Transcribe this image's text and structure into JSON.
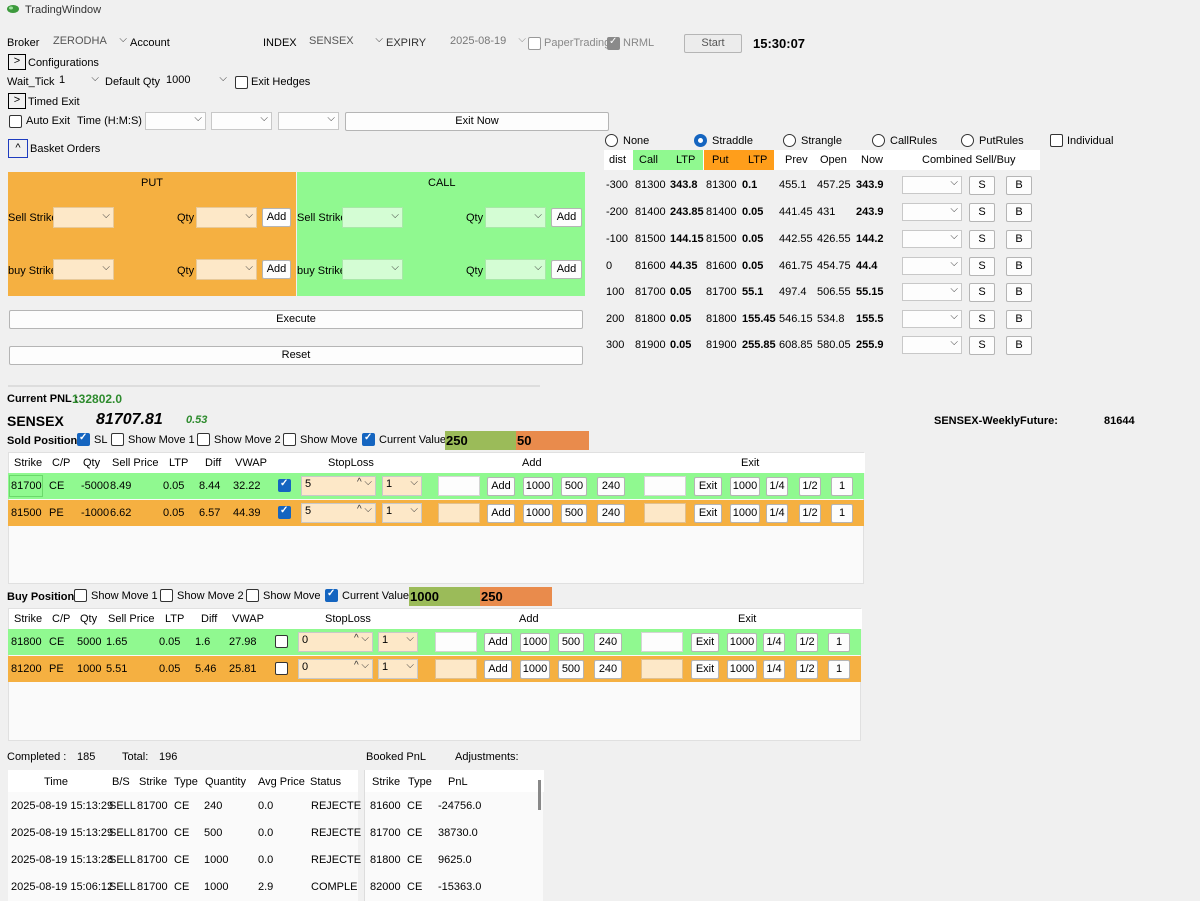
{
  "window": {
    "title": "TradingWindow"
  },
  "top": {
    "broker_label": "Broker",
    "broker_value": "ZERODHA",
    "account_label": "Account",
    "index_label": "INDEX",
    "index_value": "SENSEX",
    "expiry_label": "EXPIRY",
    "expiry_value": "2025-08-19",
    "paper_label": "PaperTrading",
    "nrml_label": "NRML",
    "start_label": "Start",
    "clock": "15:30:07"
  },
  "config": {
    "configurations": "Configurations",
    "wait_tick_label": "Wait_Tick",
    "wait_tick_value": "1",
    "default_qty_label": "Default Qty",
    "default_qty_value": "1000",
    "exit_hedges": "Exit Hedges",
    "timed_exit": "Timed Exit",
    "auto_exit": "Auto Exit",
    "time_label": "Time (H:M:S)",
    "exit_now": "Exit Now",
    "basket_orders": "Basket Orders"
  },
  "basket": {
    "put_title": "PUT",
    "call_title": "CALL",
    "sell_strike": "Sell Strike",
    "buy_strike": "buy Strike",
    "qty": "Qty",
    "add": "Add",
    "execute": "Execute",
    "reset": "Reset",
    "put_color": "#f5b041",
    "call_color": "#90f990"
  },
  "modes": [
    "None",
    "Straddle",
    "Strangle",
    "CallRules",
    "PutRules",
    "Individual"
  ],
  "chain": {
    "headers": [
      "dist",
      "Call",
      "LTP",
      "Put",
      "LTP",
      "Prev",
      "Open",
      "Now",
      "Combined Sell/Buy"
    ],
    "s_label": "S",
    "b_label": "B",
    "rows": [
      {
        "dist": "-300",
        "call": "81300",
        "cltp": "343.8",
        "put": "81300",
        "pltp": "0.1",
        "prev": "455.1",
        "open": "457.25",
        "now": "343.9"
      },
      {
        "dist": "-200",
        "call": "81400",
        "cltp": "243.85",
        "put": "81400",
        "pltp": "0.05",
        "prev": "441.45",
        "open": "431",
        "now": "243.9"
      },
      {
        "dist": "-100",
        "call": "81500",
        "cltp": "144.15",
        "put": "81500",
        "pltp": "0.05",
        "prev": "442.55",
        "open": "426.55",
        "now": "144.2"
      },
      {
        "dist": "0",
        "call": "81600",
        "cltp": "44.35",
        "put": "81600",
        "pltp": "0.05",
        "prev": "461.75",
        "open": "454.75",
        "now": "44.4"
      },
      {
        "dist": "100",
        "call": "81700",
        "cltp": "0.05",
        "put": "81700",
        "pltp": "55.1",
        "prev": "497.4",
        "open": "506.55",
        "now": "55.15"
      },
      {
        "dist": "200",
        "call": "81800",
        "cltp": "0.05",
        "put": "81800",
        "pltp": "155.45",
        "prev": "546.15",
        "open": "534.8",
        "now": "155.5"
      },
      {
        "dist": "300",
        "call": "81900",
        "cltp": "0.05",
        "put": "81900",
        "pltp": "255.85",
        "prev": "608.85",
        "open": "580.05",
        "now": "255.9"
      }
    ]
  },
  "pnl": {
    "label": "Current PNL :",
    "value": "132802.0"
  },
  "index_line": {
    "name": "SENSEX",
    "price": "81707.81",
    "change": "0.53",
    "future_label": "SENSEX-WeeklyFuture:",
    "future_value": "81644"
  },
  "sold": {
    "title": "Sold Positions",
    "sl": "SL",
    "show_move1": "Show Move 1",
    "show_move2": "Show Move 2",
    "show_move": "Show Move",
    "current_value": "Current Value",
    "val1": "250",
    "val2": "50",
    "headers": [
      "Strike",
      "C/P",
      "Qty",
      "Sell Price",
      "LTP",
      "Diff",
      "VWAP",
      "StopLoss",
      "Add",
      "Exit"
    ],
    "rows": [
      {
        "strike": "81700",
        "cp": "CE",
        "qty": "-5000",
        "sell": "8.49",
        "ltp": "0.05",
        "diff": "8.44",
        "vwap": "32.22",
        "sl": "5",
        "sl2": "1"
      },
      {
        "strike": "81500",
        "cp": "PE",
        "qty": "-1000",
        "sell": "6.62",
        "ltp": "0.05",
        "diff": "6.57",
        "vwap": "44.39",
        "sl": "5",
        "sl2": "1"
      }
    ]
  },
  "buy": {
    "title": "Buy Positions",
    "show_move1": "Show Move 1",
    "show_move2": "Show Move 2",
    "show_move": "Show Move",
    "current_value": "Current Value",
    "val1": "1000",
    "val2": "250",
    "headers": [
      "Strike",
      "C/P",
      "Qty",
      "Sell Price",
      "LTP",
      "Diff",
      "VWAP",
      "StopLoss",
      "Add",
      "Exit"
    ],
    "rows": [
      {
        "strike": "81800",
        "cp": "CE",
        "qty": "5000",
        "sell": "1.65",
        "ltp": "0.05",
        "diff": "1.6",
        "vwap": "27.98",
        "sl": "0",
        "sl2": "1"
      },
      {
        "strike": "81200",
        "cp": "PE",
        "qty": "1000",
        "sell": "5.51",
        "ltp": "0.05",
        "diff": "5.46",
        "vwap": "25.81",
        "sl": "0",
        "sl2": "1"
      }
    ]
  },
  "quick": {
    "add": "Add",
    "q1000": "1000",
    "q500": "500",
    "q240": "240",
    "exit": "Exit",
    "f14": "1/4",
    "f12": "1/2",
    "f1": "1"
  },
  "orders": {
    "completed_label": "Completed :",
    "completed_value": "185",
    "total_label": "Total:",
    "total_value": "196",
    "headers": [
      "Time",
      "B/S",
      "Strike",
      "Type",
      "Quantity",
      "Avg Price",
      "Status"
    ],
    "rows": [
      {
        "time": "2025-08-19 15:13:29",
        "bs": "SELL",
        "strike": "81700",
        "type": "CE",
        "qty": "240",
        "avg": "0.0",
        "status": "REJECTE"
      },
      {
        "time": "2025-08-19 15:13:29",
        "bs": "SELL",
        "strike": "81700",
        "type": "CE",
        "qty": "500",
        "avg": "0.0",
        "status": "REJECTE"
      },
      {
        "time": "2025-08-19 15:13:28",
        "bs": "SELL",
        "strike": "81700",
        "type": "CE",
        "qty": "1000",
        "avg": "0.0",
        "status": "REJECTE"
      },
      {
        "time": "2025-08-19 15:06:12",
        "bs": "SELL",
        "strike": "81700",
        "type": "CE",
        "qty": "1000",
        "avg": "2.9",
        "status": "COMPLE"
      }
    ]
  },
  "booked": {
    "label": "Booked PnL",
    "adjustments": "Adjustments:",
    "headers": [
      "Strike",
      "Type",
      "PnL"
    ],
    "rows": [
      {
        "strike": "81600",
        "type": "CE",
        "pnl": "-24756.0"
      },
      {
        "strike": "81700",
        "type": "CE",
        "pnl": "38730.0"
      },
      {
        "strike": "81800",
        "type": "CE",
        "pnl": "9625.0"
      },
      {
        "strike": "82000",
        "type": "CE",
        "pnl": "-15363.0"
      }
    ]
  }
}
